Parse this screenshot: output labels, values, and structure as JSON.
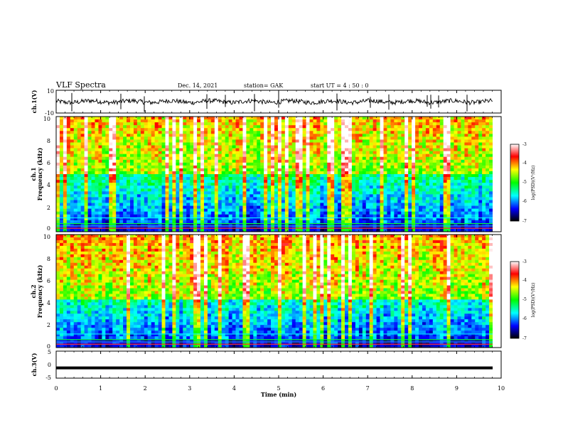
{
  "header": {
    "title": "VLF Spectra",
    "date": "Dec. 14, 2021",
    "station": "station= GAK",
    "start": "start  UT =   4 : 50 : 0"
  },
  "chart_data": [
    {
      "type": "line",
      "panel": "ch1-waveform",
      "ylabel": "ch.1(V)",
      "ylim": [
        -10,
        10
      ],
      "yticks": [
        "10",
        "-10"
      ],
      "xlim": [
        0,
        10
      ],
      "description_level": 4,
      "line_color": "#000000"
    },
    {
      "type": "heatmap",
      "panel": "ch1-spectrogram",
      "ylabel": "ch.1\nFrequency (kHz)",
      "ylabel_line1": "ch.1",
      "ylabel_line2": "Frequency (kHz)",
      "ylim": [
        0,
        10
      ],
      "yticks": [
        "0",
        "2",
        "4",
        "6",
        "8",
        "10"
      ],
      "xlim": [
        0,
        10
      ],
      "colorbar": {
        "label": "log(PSD)(V²/Hz)",
        "range": [
          -7,
          -3
        ],
        "ticks": [
          "-3",
          "-4",
          "-5",
          "-6",
          "-7"
        ],
        "colors": [
          "#000000",
          "#0000ff",
          "#00ffff",
          "#00ff00",
          "#ffff00",
          "#ff0000",
          "#ffffff"
        ]
      }
    },
    {
      "type": "heatmap",
      "panel": "ch2-spectrogram",
      "ylabel": "ch.2\nFrequency (kHz)",
      "ylabel_line1": "ch.2",
      "ylabel_line2": "Frequency (kHz)",
      "ylim": [
        0,
        10
      ],
      "yticks": [
        "0",
        "2",
        "4",
        "6",
        "8",
        "10"
      ],
      "xlim": [
        0,
        10
      ],
      "colorbar": {
        "label": "log(PSD)(V²/Hz)",
        "range": [
          -7,
          -3
        ],
        "ticks": [
          "-3",
          "-4",
          "-5",
          "-6",
          "-7"
        ],
        "colors": [
          "#000000",
          "#0000ff",
          "#00ffff",
          "#00ff00",
          "#ffff00",
          "#ff0000",
          "#ffffff"
        ]
      }
    },
    {
      "type": "line",
      "panel": "ch3-waveform",
      "ylabel": "ch.3(V)",
      "ylim": [
        -5,
        5
      ],
      "yticks": [
        "5",
        "0",
        "-5"
      ],
      "xlim": [
        0,
        10
      ],
      "level": -1.2,
      "line_color": "#000000"
    }
  ],
  "xaxis": {
    "label": "Time  (min)",
    "ticks": [
      "0",
      "1",
      "2",
      "3",
      "4",
      "5",
      "6",
      "7",
      "8",
      "9",
      "10"
    ]
  }
}
